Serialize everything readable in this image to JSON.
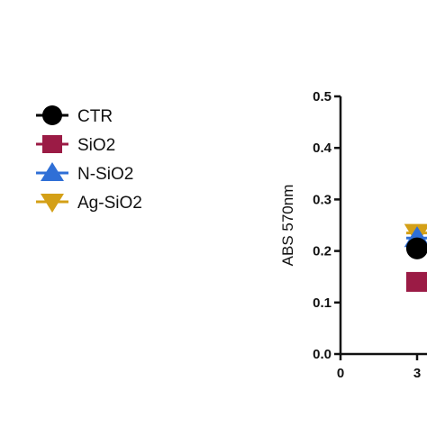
{
  "chart_data": {
    "type": "scatter",
    "title": "",
    "xlabel": "",
    "ylabel": "ABS 570nm",
    "ylim": [
      0,
      0.5
    ],
    "yticks": [
      "0.0",
      "0.1",
      "0.2",
      "0.3",
      "0.4",
      "0.5"
    ],
    "xticks": [
      "0",
      "3"
    ],
    "grid": false,
    "legend_position": "left",
    "series": [
      {
        "name": "CTR",
        "marker": "circle",
        "color": "#000000",
        "points": [
          {
            "x": 3,
            "y": 0.205
          }
        ]
      },
      {
        "name": "SiO2",
        "marker": "square",
        "color": "#9b1b45",
        "points": [
          {
            "x": 3,
            "y": 0.14
          }
        ]
      },
      {
        "name": "N-SiO2",
        "marker": "triangle-up",
        "color": "#2f6fd6",
        "points": [
          {
            "x": 3,
            "y": 0.225
          }
        ]
      },
      {
        "name": "Ag-SiO2",
        "marker": "triangle-down",
        "color": "#d4a017",
        "points": [
          {
            "x": 3,
            "y": 0.235
          }
        ]
      }
    ]
  }
}
